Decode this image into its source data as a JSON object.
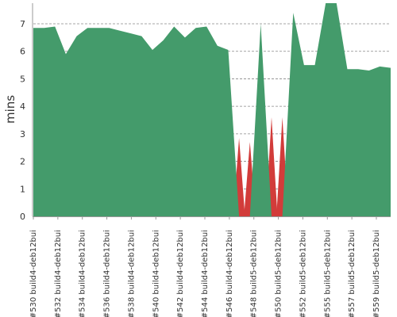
{
  "chart_data": {
    "type": "area",
    "ylabel": "mins",
    "ylim": [
      0,
      7.75
    ],
    "y_ticks": [
      0,
      1,
      2,
      3,
      4,
      5,
      6,
      7
    ],
    "grid": "horizontal dashed",
    "colors": {
      "series_fill": "#449b6b",
      "failure_fill": "#d23c3a",
      "grid": "#888888",
      "axis": "#999999",
      "text": "#333333"
    },
    "x_tick_labels": [
      "#530 build4-deb12bui",
      "#532 build4-deb12bui",
      "#534 build4-deb12bui",
      "#536 build4-deb12bui",
      "#538 build4-deb12bui",
      "#540 build4-deb12bui",
      "#542 build4-deb12bui",
      "#544 build4-deb12bui",
      "#546 build4-deb12bui",
      "#548 build5-deb12bui",
      "#550 build5-deb12bui",
      "#552 build5-deb12bui",
      "#555 build5-deb12bui",
      "#557 build5-deb12bui",
      "#559 build5-deb12bui"
    ],
    "values": [
      6.85,
      6.85,
      6.9,
      5.9,
      6.55,
      6.85,
      6.85,
      6.85,
      6.75,
      6.65,
      6.55,
      6.05,
      6.4,
      6.9,
      6.5,
      6.85,
      6.9,
      6.2,
      6.05,
      0,
      0,
      7.0,
      0,
      0,
      7.4,
      5.5,
      5.5,
      7.75,
      7.75,
      5.35,
      5.35,
      5.3,
      5.45,
      5.4
    ],
    "failures": [
      {
        "index": 19,
        "peak": 2.85
      },
      {
        "index": 20,
        "peak": 2.7
      },
      {
        "index": 22,
        "peak": 3.6
      },
      {
        "index": 23,
        "peak": 3.6
      }
    ]
  }
}
